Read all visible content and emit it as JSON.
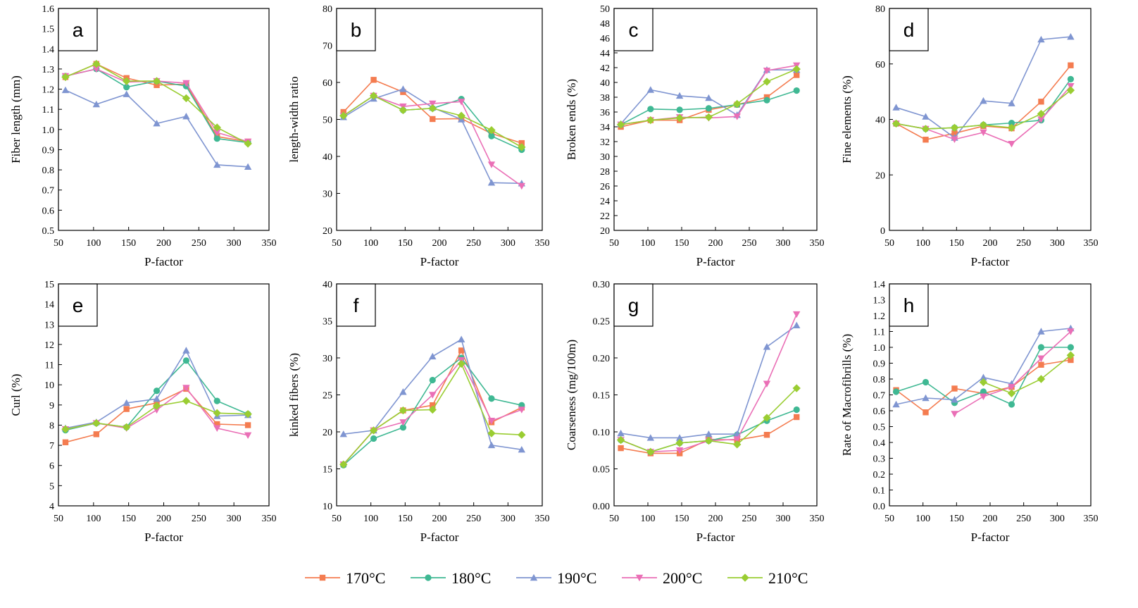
{
  "legend": [
    {
      "name": "170°C",
      "color": "#f47c50",
      "marker": "square"
    },
    {
      "name": "180°C",
      "color": "#3fb893",
      "marker": "circle"
    },
    {
      "name": "190°C",
      "color": "#7f95d1",
      "marker": "triangle-up"
    },
    {
      "name": "200°C",
      "color": "#ea6fb6",
      "marker": "triangle-down"
    },
    {
      "name": "210°C",
      "color": "#9acd32",
      "marker": "diamond"
    }
  ],
  "chart_data": [
    {
      "panel": "a",
      "type": "line",
      "xlabel": "P-factor",
      "ylabel": "Fiber length (mm)",
      "xlim": [
        50,
        350
      ],
      "xticks": [
        50,
        100,
        150,
        200,
        250,
        300,
        350
      ],
      "ylim": [
        0.5,
        1.6
      ],
      "yticks": [
        0.5,
        0.6,
        0.7,
        0.8,
        0.9,
        1.0,
        1.1,
        1.2,
        1.3,
        1.4,
        1.5,
        1.6
      ],
      "ydec": 1,
      "grid": false,
      "series": [
        {
          "name": "170°C",
          "x": [
            60,
            104,
            147,
            190,
            232,
            276,
            320
          ],
          "values": [
            1.26,
            1.325,
            1.255,
            1.22,
            1.225,
            0.965,
            0.94
          ]
        },
        {
          "name": "180°C",
          "x": [
            60,
            104,
            147,
            190,
            232,
            276,
            320
          ],
          "values": [
            1.265,
            1.3,
            1.21,
            1.24,
            1.215,
            0.955,
            0.935
          ]
        },
        {
          "name": "190°C",
          "x": [
            60,
            104,
            147,
            190,
            232,
            276,
            320
          ],
          "values": [
            1.195,
            1.125,
            1.175,
            1.03,
            1.065,
            0.825,
            0.815
          ]
        },
        {
          "name": "200°C",
          "x": [
            60,
            104,
            147,
            190,
            232,
            276,
            320
          ],
          "values": [
            1.265,
            1.3,
            1.235,
            1.24,
            1.23,
            0.985,
            0.94
          ]
        },
        {
          "name": "210°C",
          "x": [
            60,
            104,
            147,
            190,
            232,
            276,
            320
          ],
          "values": [
            1.26,
            1.325,
            1.24,
            1.24,
            1.155,
            1.01,
            0.93
          ]
        }
      ]
    },
    {
      "panel": "b",
      "type": "line",
      "xlabel": "P-factor",
      "ylabel": "length-width ratio",
      "xlim": [
        50,
        350
      ],
      "xticks": [
        50,
        100,
        150,
        200,
        250,
        300,
        350
      ],
      "ylim": [
        20,
        80
      ],
      "yticks": [
        20,
        30,
        40,
        50,
        60,
        70,
        80
      ],
      "ydec": 0,
      "grid": false,
      "series": [
        {
          "name": "170°C",
          "x": [
            60,
            104,
            147,
            190,
            232,
            276,
            320
          ],
          "values": [
            52,
            60.7,
            57.4,
            50.1,
            50.2,
            46.2,
            43.6
          ]
        },
        {
          "name": "180°C",
          "x": [
            60,
            104,
            147,
            190,
            232,
            276,
            320
          ],
          "values": [
            51,
            56.4,
            52.5,
            53.0,
            55.5,
            45.5,
            41.8
          ]
        },
        {
          "name": "190°C",
          "x": [
            60,
            104,
            147,
            190,
            232,
            276,
            320
          ],
          "values": [
            50.6,
            55.6,
            58.2,
            53.2,
            50.0,
            32.9,
            32.7
          ]
        },
        {
          "name": "200°C",
          "x": [
            60,
            104,
            147,
            190,
            232,
            276,
            320
          ],
          "values": [
            51,
            56.4,
            53.5,
            54.3,
            54.8,
            37.8,
            32.0
          ]
        },
        {
          "name": "210°C",
          "x": [
            60,
            104,
            147,
            190,
            232,
            276,
            320
          ],
          "values": [
            51,
            56.4,
            52.5,
            53.0,
            51.0,
            47.1,
            42.5
          ]
        }
      ]
    },
    {
      "panel": "c",
      "type": "line",
      "xlabel": "P-factor",
      "ylabel": "Broken ends (%)",
      "xlim": [
        50,
        350
      ],
      "xticks": [
        50,
        100,
        150,
        200,
        250,
        300,
        350
      ],
      "ylim": [
        20,
        50
      ],
      "yticks": [
        20,
        22,
        24,
        26,
        28,
        30,
        32,
        34,
        36,
        38,
        40,
        42,
        44,
        46,
        48,
        50
      ],
      "ydec": 0,
      "grid": false,
      "series": [
        {
          "name": "170°C",
          "x": [
            60,
            104,
            147,
            190,
            232,
            276,
            320
          ],
          "values": [
            34.0,
            34.9,
            34.9,
            36.3,
            37.0,
            38.0,
            41.0
          ]
        },
        {
          "name": "180°C",
          "x": [
            60,
            104,
            147,
            190,
            232,
            276,
            320
          ],
          "values": [
            34.3,
            36.4,
            36.3,
            36.5,
            37.0,
            37.6,
            38.9
          ]
        },
        {
          "name": "190°C",
          "x": [
            60,
            104,
            147,
            190,
            232,
            276,
            320
          ],
          "values": [
            34.4,
            39.0,
            38.2,
            37.9,
            35.6,
            41.7,
            41.7
          ]
        },
        {
          "name": "200°C",
          "x": [
            60,
            104,
            147,
            190,
            232,
            276,
            320
          ],
          "values": [
            34.3,
            34.9,
            35.3,
            35.2,
            35.4,
            41.6,
            42.3
          ]
        },
        {
          "name": "210°C",
          "x": [
            60,
            104,
            147,
            190,
            232,
            276,
            320
          ],
          "values": [
            34.3,
            34.9,
            35.2,
            35.3,
            37.1,
            40.1,
            41.8
          ]
        }
      ]
    },
    {
      "panel": "d",
      "type": "line",
      "xlabel": "P-factor",
      "ylabel": "Fine elements (%)",
      "xlim": [
        50,
        350
      ],
      "xticks": [
        50,
        100,
        150,
        200,
        250,
        300,
        350
      ],
      "ylim": [
        0,
        80
      ],
      "yticks": [
        0,
        20,
        40,
        60,
        80
      ],
      "ydec": 0,
      "grid": false,
      "series": [
        {
          "name": "170°C",
          "x": [
            60,
            104,
            147,
            190,
            232,
            276,
            320
          ],
          "values": [
            38.5,
            32.7,
            35.0,
            37.6,
            36.8,
            46.4,
            59.5
          ]
        },
        {
          "name": "180°C",
          "x": [
            60,
            104,
            147,
            190,
            232,
            276,
            320
          ],
          "values": [
            38.5,
            36.6,
            37.0,
            38.0,
            38.7,
            39.7,
            54.5
          ]
        },
        {
          "name": "190°C",
          "x": [
            60,
            104,
            147,
            190,
            232,
            276,
            320
          ],
          "values": [
            44.3,
            41.0,
            33.4,
            46.7,
            45.8,
            68.8,
            69.8
          ]
        },
        {
          "name": "200°C",
          "x": [
            60,
            104,
            147,
            190,
            232,
            276,
            320
          ],
          "values": [
            38.5,
            36.6,
            32.8,
            35.3,
            31.2,
            40.0,
            52.0
          ]
        },
        {
          "name": "210°C",
          "x": [
            60,
            104,
            147,
            190,
            232,
            276,
            320
          ],
          "values": [
            38.5,
            36.6,
            37.0,
            38.0,
            37.0,
            42.0,
            50.5
          ]
        }
      ]
    },
    {
      "panel": "e",
      "type": "line",
      "xlabel": "P-factor",
      "ylabel": "Curl (%)",
      "xlim": [
        50,
        350
      ],
      "xticks": [
        50,
        100,
        150,
        200,
        250,
        300,
        350
      ],
      "ylim": [
        4,
        15
      ],
      "yticks": [
        4,
        5,
        6,
        7,
        8,
        9,
        10,
        11,
        12,
        13,
        14,
        15
      ],
      "ydec": 0,
      "grid": false,
      "series": [
        {
          "name": "170°C",
          "x": [
            60,
            104,
            147,
            190,
            232,
            276,
            320
          ],
          "values": [
            7.15,
            7.55,
            8.8,
            9.1,
            9.8,
            8.05,
            8.0
          ]
        },
        {
          "name": "180°C",
          "x": [
            60,
            104,
            147,
            190,
            232,
            276,
            320
          ],
          "values": [
            7.75,
            8.1,
            7.9,
            9.7,
            11.2,
            9.2,
            8.55
          ]
        },
        {
          "name": "190°C",
          "x": [
            60,
            104,
            147,
            190,
            232,
            276,
            320
          ],
          "values": [
            7.85,
            8.15,
            9.1,
            9.3,
            11.7,
            8.45,
            8.5
          ]
        },
        {
          "name": "200°C",
          "x": [
            60,
            104,
            147,
            190,
            232,
            276,
            320
          ],
          "values": [
            7.8,
            8.1,
            7.85,
            8.75,
            9.85,
            7.85,
            7.5
          ]
        },
        {
          "name": "210°C",
          "x": [
            60,
            104,
            147,
            190,
            232,
            276,
            320
          ],
          "values": [
            7.8,
            8.1,
            7.9,
            8.95,
            9.2,
            8.6,
            8.55
          ]
        }
      ]
    },
    {
      "panel": "f",
      "type": "line",
      "xlabel": "P-factor",
      "ylabel": "kinked fibers (%)",
      "xlim": [
        50,
        350
      ],
      "xticks": [
        50,
        100,
        150,
        200,
        250,
        300,
        350
      ],
      "ylim": [
        10,
        40
      ],
      "yticks": [
        10,
        15,
        20,
        25,
        30,
        35,
        40
      ],
      "ydec": 0,
      "grid": false,
      "series": [
        {
          "name": "170°C",
          "x": [
            60,
            104,
            147,
            190,
            232,
            276,
            320
          ],
          "values": [
            15.6,
            20.2,
            22.9,
            23.6,
            31.0,
            21.3,
            23.3
          ]
        },
        {
          "name": "180°C",
          "x": [
            60,
            104,
            147,
            190,
            232,
            276,
            320
          ],
          "values": [
            15.5,
            19.1,
            20.6,
            27.0,
            30.0,
            24.5,
            23.6
          ]
        },
        {
          "name": "190°C",
          "x": [
            60,
            104,
            147,
            190,
            232,
            276,
            320
          ],
          "values": [
            19.7,
            20.2,
            25.4,
            30.2,
            32.5,
            18.2,
            17.6
          ]
        },
        {
          "name": "200°C",
          "x": [
            60,
            104,
            147,
            190,
            232,
            276,
            320
          ],
          "values": [
            15.6,
            20.2,
            21.3,
            25.0,
            29.7,
            21.5,
            23.0
          ]
        },
        {
          "name": "210°C",
          "x": [
            60,
            104,
            147,
            190,
            232,
            276,
            320
          ],
          "values": [
            15.6,
            20.2,
            22.9,
            23.0,
            29.2,
            19.8,
            19.6
          ]
        }
      ]
    },
    {
      "panel": "g",
      "type": "line",
      "xlabel": "P-factor",
      "ylabel": "Coarseness (mg/100m)",
      "xlim": [
        50,
        350
      ],
      "xticks": [
        50,
        100,
        150,
        200,
        250,
        300,
        350
      ],
      "ylim": [
        0,
        0.3
      ],
      "yticks": [
        0.0,
        0.05,
        0.1,
        0.15,
        0.2,
        0.25,
        0.3
      ],
      "ydec": 2,
      "grid": false,
      "series": [
        {
          "name": "170°C",
          "x": [
            60,
            104,
            147,
            190,
            232,
            276,
            320
          ],
          "values": [
            0.078,
            0.071,
            0.071,
            0.09,
            0.089,
            0.096,
            0.12
          ]
        },
        {
          "name": "180°C",
          "x": [
            60,
            104,
            147,
            190,
            232,
            276,
            320
          ],
          "values": [
            0.089,
            0.073,
            0.085,
            0.088,
            0.096,
            0.115,
            0.13
          ]
        },
        {
          "name": "190°C",
          "x": [
            60,
            104,
            147,
            190,
            232,
            276,
            320
          ],
          "values": [
            0.098,
            0.092,
            0.092,
            0.097,
            0.097,
            0.215,
            0.244
          ]
        },
        {
          "name": "200°C",
          "x": [
            60,
            104,
            147,
            190,
            232,
            276,
            320
          ],
          "values": [
            0.089,
            0.073,
            0.075,
            0.088,
            0.09,
            0.165,
            0.259
          ]
        },
        {
          "name": "210°C",
          "x": [
            60,
            104,
            147,
            190,
            232,
            276,
            320
          ],
          "values": [
            0.089,
            0.073,
            0.085,
            0.088,
            0.083,
            0.119,
            0.159
          ]
        }
      ]
    },
    {
      "panel": "h",
      "type": "line",
      "xlabel": "P-factor",
      "ylabel": "Rate of Macrofibrills (%)",
      "xlim": [
        50,
        350
      ],
      "xticks": [
        50,
        100,
        150,
        200,
        250,
        300,
        350
      ],
      "ylim": [
        0,
        1.4
      ],
      "yticks": [
        0.0,
        0.1,
        0.2,
        0.3,
        0.4,
        0.5,
        0.6,
        0.7,
        0.8,
        0.9,
        1.0,
        1.1,
        1.2,
        1.3,
        1.4
      ],
      "ydec": 1,
      "grid": false,
      "series": [
        {
          "name": "170°C",
          "x": [
            60,
            104,
            147,
            190,
            232,
            276,
            320
          ],
          "values": [
            0.73,
            0.59,
            0.74,
            0.71,
            0.75,
            0.89,
            0.92
          ]
        },
        {
          "name": "180°C",
          "x": [
            60,
            104,
            147,
            190,
            232,
            276,
            320
          ],
          "values": [
            0.72,
            0.78,
            0.65,
            0.72,
            0.64,
            1.0,
            1.0
          ]
        },
        {
          "name": "190°C",
          "x": [
            60,
            104,
            147,
            190,
            232,
            276,
            320
          ],
          "values": [
            0.64,
            0.68,
            0.67,
            0.81,
            0.77,
            1.1,
            1.12
          ]
        },
        {
          "name": "200°C",
          "x": [
            147,
            190,
            232,
            276,
            320
          ],
          "values": [
            0.58,
            0.69,
            0.75,
            0.93,
            1.1
          ]
        },
        {
          "name": "210°C",
          "x": [
            190,
            232,
            276,
            320
          ],
          "values": [
            0.78,
            0.71,
            0.8,
            0.95
          ]
        }
      ]
    }
  ]
}
